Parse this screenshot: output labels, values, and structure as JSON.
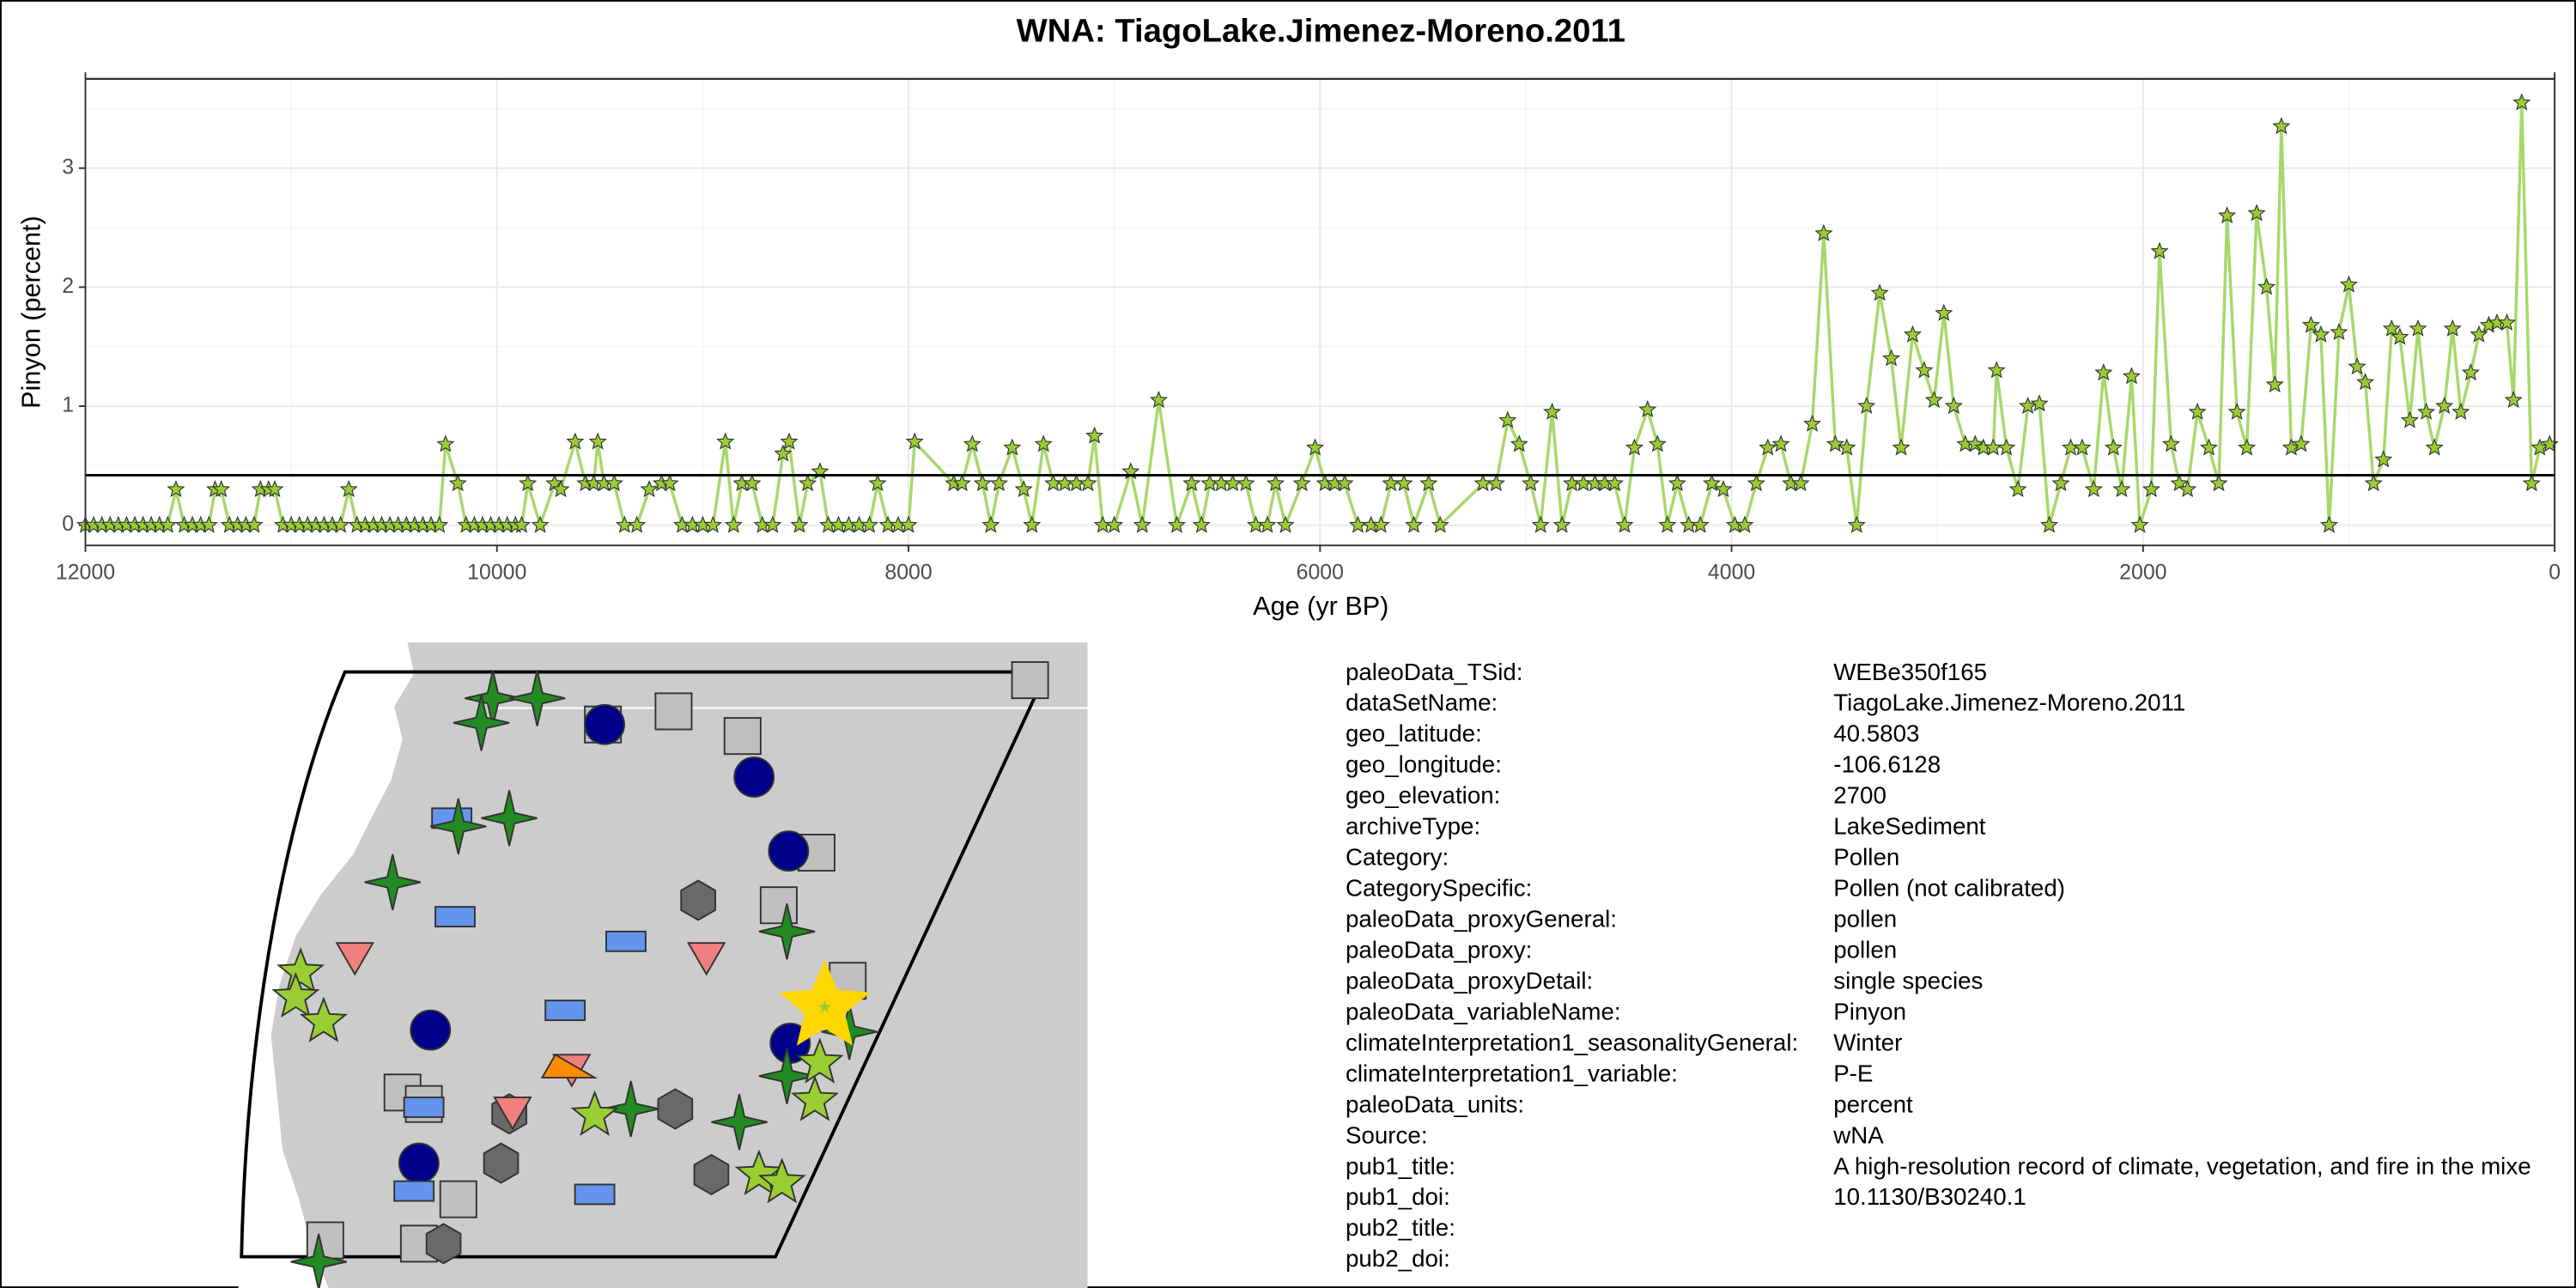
{
  "chart_data": {
    "type": "line",
    "title": "WNA: TiagoLake.Jimenez-Moreno.2011",
    "xlabel": "Age (yr BP)",
    "ylabel": "Pinyon (percent)",
    "color": "#a6d96a",
    "marker_color": "#9acd32",
    "grid": true,
    "hline": 0.42,
    "xlim": [
      12000,
      0
    ],
    "xticks": [
      12000,
      10000,
      8000,
      6000,
      4000,
      2000,
      0
    ],
    "ylim": [
      -0.17,
      3.75
    ],
    "yticks": [
      0,
      1,
      2,
      3
    ],
    "x": [
      12000,
      11960,
      11920,
      11880,
      11840,
      11800,
      11760,
      11720,
      11680,
      11640,
      11600,
      11560,
      11520,
      11480,
      11440,
      11400,
      11370,
      11340,
      11300,
      11260,
      11220,
      11180,
      11150,
      11110,
      11080,
      11040,
      11000,
      10960,
      10920,
      10880,
      10840,
      10800,
      10760,
      10720,
      10680,
      10640,
      10600,
      10560,
      10520,
      10480,
      10440,
      10400,
      10360,
      10320,
      10280,
      10250,
      10190,
      10150,
      10110,
      10070,
      10030,
      9990,
      9950,
      9910,
      9880,
      9850,
      9790,
      9720,
      9690,
      9620,
      9570,
      9530,
      9510,
      9480,
      9430,
      9380,
      9320,
      9260,
      9200,
      9160,
      9100,
      9050,
      9000,
      8950,
      8890,
      8850,
      8810,
      8760,
      8710,
      8660,
      8610,
      8580,
      8530,
      8490,
      8430,
      8390,
      8340,
      8290,
      8240,
      8190,
      8150,
      8100,
      8050,
      8000,
      7970,
      7780,
      7740,
      7690,
      7640,
      7600,
      7560,
      7496,
      7440,
      7400,
      7344,
      7296,
      7240,
      7184,
      7128,
      7096,
      7056,
      7000,
      6920,
      6864,
      6784,
      6696,
      6624,
      6576,
      6536,
      6480,
      6424,
      6360,
      6312,
      6256,
      6216,
      6168,
      6088,
      6024,
      5976,
      5928,
      5880,
      5816,
      5752,
      5704,
      5656,
      5592,
      5544,
      5472,
      5416,
      5208,
      5144,
      5088,
      5032,
      4976,
      4928,
      4872,
      4824,
      4776,
      4720,
      4664,
      4616,
      4568,
      4520,
      4472,
      4408,
      4360,
      4312,
      4264,
      4208,
      4152,
      4096,
      4040,
      3984,
      3936,
      3880,
      3824,
      3760,
      3712,
      3664,
      3608,
      3552,
      3496,
      3440,
      3392,
      3344,
      3280,
      3224,
      3176,
      3120,
      3064,
      3016,
      2968,
      2920,
      2864,
      2816,
      2776,
      2728,
      2712,
      2664,
      2608,
      2560,
      2504,
      2456,
      2400,
      2352,
      2296,
      2240,
      2192,
      2144,
      2104,
      2056,
      2016,
      1960,
      1920,
      1864,
      1824,
      1784,
      1736,
      1680,
      1632,
      1592,
      1544,
      1496,
      1448,
      1400,
      1360,
      1328,
      1280,
      1232,
      1184,
      1136,
      1096,
      1048,
      1000,
      960,
      920,
      880,
      832,
      792,
      752,
      704,
      664,
      624,
      584,
      536,
      496,
      456,
      408,
      368,
      320,
      280,
      232,
      200,
      160,
      112,
      72,
      24
    ],
    "values": [
      0,
      0,
      0,
      0,
      0,
      0,
      0,
      0,
      0,
      0,
      0,
      0.3,
      0,
      0,
      0,
      0,
      0.3,
      0.3,
      0,
      0,
      0,
      0,
      0.3,
      0.3,
      0.3,
      0,
      0,
      0,
      0,
      0,
      0,
      0,
      0,
      0.3,
      0,
      0,
      0,
      0,
      0,
      0,
      0,
      0,
      0,
      0,
      0,
      0.68,
      0.35,
      0,
      0,
      0,
      0,
      0,
      0,
      0,
      0,
      0.35,
      0,
      0.35,
      0.3,
      0.7,
      0.35,
      0.35,
      0.7,
      0.35,
      0.35,
      0,
      0,
      0.3,
      0.35,
      0.35,
      0,
      0,
      0,
      0,
      0.7,
      0,
      0.35,
      0.35,
      0,
      0,
      0.6,
      0.7,
      0,
      0.35,
      0.45,
      0,
      0,
      0,
      0,
      0,
      0.35,
      0,
      0,
      0,
      0.7,
      0.35,
      0.35,
      0.68,
      0.35,
      0,
      0.35,
      0.65,
      0.3,
      0,
      0.68,
      0.35,
      0.35,
      0.35,
      0.35,
      0.75,
      0,
      0,
      0.45,
      0,
      1.05,
      0,
      0.35,
      0,
      0.35,
      0.35,
      0.35,
      0.35,
      0,
      0,
      0.35,
      0,
      0.35,
      0.65,
      0.35,
      0.35,
      0.35,
      0,
      0,
      0,
      0.35,
      0.35,
      0,
      0.35,
      0,
      0.35,
      0.35,
      0.88,
      0.68,
      0.35,
      0,
      0.95,
      0,
      0.35,
      0.35,
      0.35,
      0.35,
      0.35,
      0,
      0.65,
      0.97,
      0.68,
      0,
      0.35,
      0,
      0,
      0.35,
      0.3,
      0,
      0,
      0.35,
      0.65,
      0.68,
      0.35,
      0.35,
      0.85,
      2.45,
      0.68,
      0.65,
      0,
      1.0,
      1.95,
      1.4,
      0.65,
      1.6,
      1.3,
      1.05,
      1.78,
      1.0,
      0.68,
      0.68,
      0.65,
      0.65,
      1.3,
      0.65,
      0.3,
      1.0,
      1.02,
      0,
      0.35,
      0.65,
      0.65,
      0.3,
      1.28,
      0.65,
      0.3,
      1.25,
      0,
      0.3,
      2.3,
      0.68,
      0.35,
      0.3,
      0.95,
      0.65,
      0.35,
      2.6,
      0.95,
      0.65,
      2.62,
      2.0,
      1.18,
      3.35,
      0.65,
      0.68,
      1.68,
      1.6,
      0,
      1.62,
      2.02,
      1.33,
      1.2,
      0.35,
      0.55,
      1.65,
      1.58,
      0.88,
      1.65,
      0.95,
      0.65,
      1.0,
      1.65,
      0.95,
      1.28,
      1.6,
      1.68,
      1.7,
      1.7,
      1.05,
      3.55,
      0.35,
      0.65,
      0.68
    ]
  },
  "metadata": [
    {
      "key": "paleoData_TSid:",
      "value": "WEBe350f165"
    },
    {
      "key": "dataSetName:",
      "value": "TiagoLake.Jimenez-Moreno.2011"
    },
    {
      "key": "geo_latitude:",
      "value": "40.5803"
    },
    {
      "key": "geo_longitude:",
      "value": "-106.6128"
    },
    {
      "key": "geo_elevation:",
      "value": "2700"
    },
    {
      "key": "archiveType:",
      "value": "LakeSediment"
    },
    {
      "key": "Category:",
      "value": "Pollen"
    },
    {
      "key": "CategorySpecific:",
      "value": "Pollen (not calibrated)"
    },
    {
      "key": "paleoData_proxyGeneral:",
      "value": "pollen"
    },
    {
      "key": "paleoData_proxy:",
      "value": "pollen"
    },
    {
      "key": "paleoData_proxyDetail:",
      "value": "single species"
    },
    {
      "key": "paleoData_variableName:",
      "value": "Pinyon"
    },
    {
      "key": "climateInterpretation1_seasonalityGeneral:",
      "value": "Winter"
    },
    {
      "key": "climateInterpretation1_variable:",
      "value": "P-E"
    },
    {
      "key": "paleoData_units:",
      "value": "percent"
    },
    {
      "key": "Source:",
      "value": "wNA"
    },
    {
      "key": "pub1_title:",
      "value": "A high-resolution record of climate, vegetation, and fire in the mixe"
    },
    {
      "key": "pub1_doi:",
      "value": "10.1130/B30240.1"
    },
    {
      "key": "pub2_title:"
    },
    {
      "key": "pub2_doi:"
    }
  ]
}
